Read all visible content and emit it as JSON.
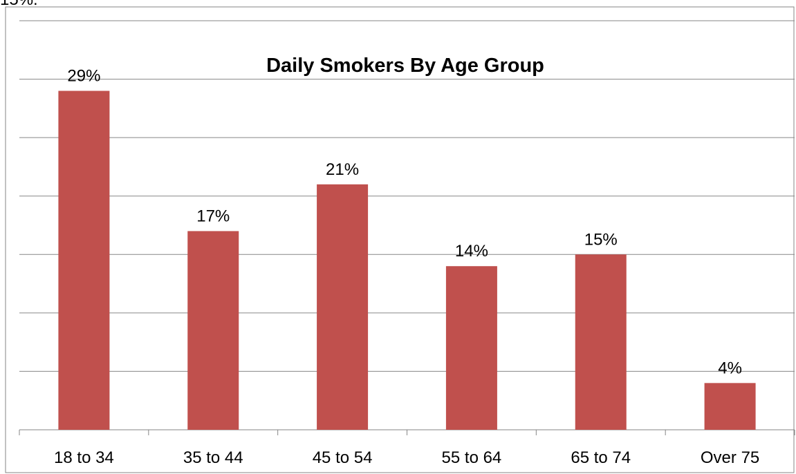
{
  "page": {
    "partial_text": "15%."
  },
  "chart_data": {
    "type": "bar",
    "title": "Daily Smokers By Age Group",
    "categories": [
      "18 to 34",
      "35 to 44",
      "45 to 54",
      "55 to 64",
      "65 to 74",
      "Over 75"
    ],
    "values": [
      29,
      17,
      21,
      14,
      15,
      4
    ],
    "data_labels": [
      "29%",
      "17%",
      "21%",
      "14%",
      "15%",
      "4%"
    ],
    "ylim": [
      0,
      35
    ],
    "y_gridline_step": 5,
    "grid": true,
    "legend": "none",
    "bar_color": "#C0504D",
    "grid_color": "#868686",
    "frame_color": "#868686"
  }
}
